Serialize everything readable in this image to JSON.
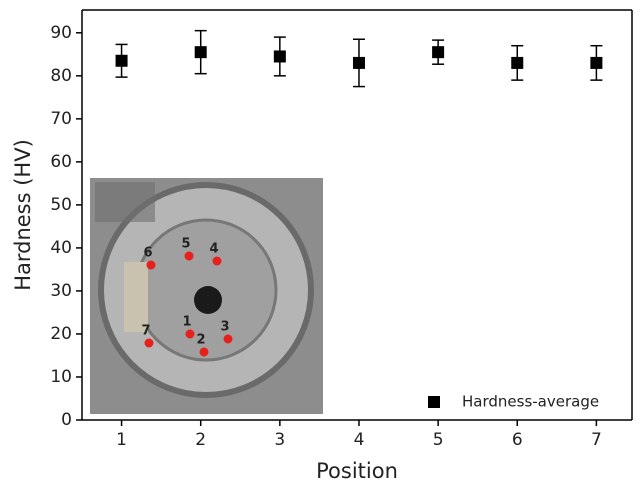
{
  "chart_data": {
    "type": "scatter",
    "x_label": "Position",
    "y_label": "Hardness (HV)",
    "x": [
      1,
      2,
      3,
      4,
      5,
      6,
      7
    ],
    "series": [
      {
        "name": "Hardness-average",
        "color": "#000000",
        "values": [
          83.5,
          85.5,
          84.5,
          83,
          85.5,
          83,
          83
        ],
        "errors": [
          3.8,
          5,
          4.5,
          5.5,
          2.8,
          4,
          4
        ]
      }
    ],
    "xlim": [
      0.5,
      7.45
    ],
    "ylim": [
      0,
      95.3
    ],
    "xticks": [
      1,
      2,
      3,
      4,
      5,
      6,
      7
    ],
    "yticks": [
      0,
      10,
      20,
      30,
      40,
      50,
      60,
      70,
      80,
      90
    ],
    "legend": "lower right",
    "photo_labels": [
      "1",
      "2",
      "3",
      "4",
      "5",
      "6",
      "7"
    ]
  }
}
